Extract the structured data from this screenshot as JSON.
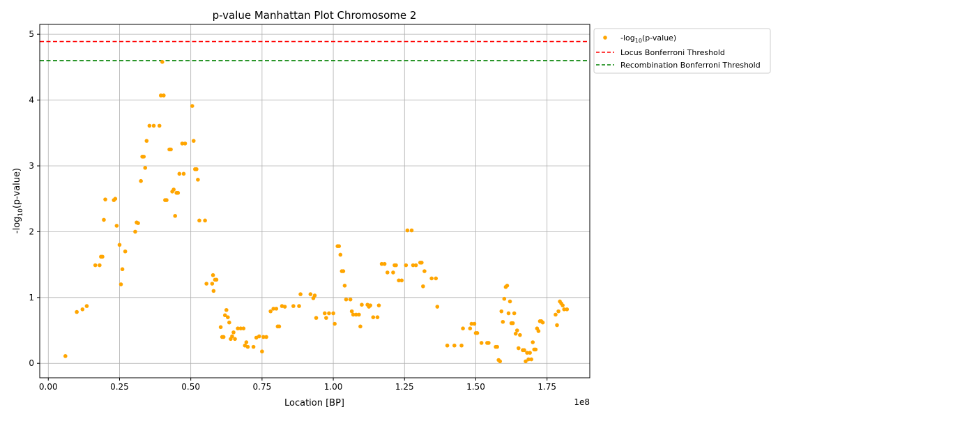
{
  "chart_data": {
    "type": "scatter",
    "title": "p-value Manhattan Plot Chromosome 2",
    "xlabel": "Location [BP]",
    "ylabel_parts": [
      "-log",
      "10",
      "(p-value)"
    ],
    "x_offset_label": "1e8",
    "xlim": [
      -0.03,
      1.9
    ],
    "ylim": [
      -0.22,
      5.15
    ],
    "x_ticks": [
      0.0,
      0.25,
      0.5,
      0.75,
      1.0,
      1.25,
      1.5,
      1.75
    ],
    "x_tick_labels": [
      "0.00",
      "0.25",
      "0.50",
      "0.75",
      "1.00",
      "1.25",
      "1.50",
      "1.75"
    ],
    "y_ticks": [
      0,
      1,
      2,
      3,
      4,
      5
    ],
    "y_tick_labels": [
      "0",
      "1",
      "2",
      "3",
      "4",
      "5"
    ],
    "grid": true,
    "legend_position": "outside-right-top",
    "series": [
      {
        "name_parts": [
          "-log",
          "10",
          "(p-value)"
        ],
        "kind": "scatter",
        "color": "#FFA500",
        "points": [
          [
            0.06,
            0.11
          ],
          [
            0.1,
            0.78
          ],
          [
            0.12,
            0.82
          ],
          [
            0.135,
            0.87
          ],
          [
            0.165,
            1.49
          ],
          [
            0.18,
            1.49
          ],
          [
            0.185,
            1.62
          ],
          [
            0.19,
            1.62
          ],
          [
            0.195,
            2.18
          ],
          [
            0.2,
            2.49
          ],
          [
            0.23,
            2.48
          ],
          [
            0.235,
            2.5
          ],
          [
            0.24,
            2.09
          ],
          [
            0.25,
            1.8
          ],
          [
            0.255,
            1.2
          ],
          [
            0.26,
            1.43
          ],
          [
            0.27,
            1.7
          ],
          [
            0.305,
            2.0
          ],
          [
            0.31,
            2.14
          ],
          [
            0.315,
            2.13
          ],
          [
            0.325,
            2.77
          ],
          [
            0.33,
            3.14
          ],
          [
            0.335,
            3.14
          ],
          [
            0.34,
            2.97
          ],
          [
            0.345,
            3.38
          ],
          [
            0.355,
            3.61
          ],
          [
            0.37,
            3.61
          ],
          [
            0.39,
            3.61
          ],
          [
            0.395,
            4.07
          ],
          [
            0.4,
            4.58
          ],
          [
            0.405,
            4.07
          ],
          [
            0.41,
            2.48
          ],
          [
            0.415,
            2.48
          ],
          [
            0.425,
            3.25
          ],
          [
            0.43,
            3.25
          ],
          [
            0.435,
            2.61
          ],
          [
            0.44,
            2.64
          ],
          [
            0.445,
            2.24
          ],
          [
            0.45,
            2.59
          ],
          [
            0.455,
            2.59
          ],
          [
            0.46,
            2.88
          ],
          [
            0.47,
            3.34
          ],
          [
            0.475,
            2.88
          ],
          [
            0.48,
            3.34
          ],
          [
            0.505,
            3.91
          ],
          [
            0.51,
            3.38
          ],
          [
            0.515,
            2.95
          ],
          [
            0.52,
            2.95
          ],
          [
            0.525,
            2.79
          ],
          [
            0.53,
            2.17
          ],
          [
            0.55,
            2.17
          ],
          [
            0.555,
            1.21
          ],
          [
            0.575,
            1.21
          ],
          [
            0.578,
            1.34
          ],
          [
            0.58,
            1.1
          ],
          [
            0.585,
            1.27
          ],
          [
            0.59,
            1.27
          ],
          [
            0.605,
            0.55
          ],
          [
            0.61,
            0.4
          ],
          [
            0.615,
            0.4
          ],
          [
            0.62,
            0.73
          ],
          [
            0.625,
            0.81
          ],
          [
            0.63,
            0.7
          ],
          [
            0.635,
            0.62
          ],
          [
            0.64,
            0.37
          ],
          [
            0.645,
            0.41
          ],
          [
            0.65,
            0.47
          ],
          [
            0.655,
            0.37
          ],
          [
            0.665,
            0.53
          ],
          [
            0.675,
            0.53
          ],
          [
            0.685,
            0.53
          ],
          [
            0.69,
            0.27
          ],
          [
            0.695,
            0.32
          ],
          [
            0.7,
            0.25
          ],
          [
            0.72,
            0.25
          ],
          [
            0.73,
            0.39
          ],
          [
            0.74,
            0.41
          ],
          [
            0.75,
            0.18
          ],
          [
            0.755,
            0.4
          ],
          [
            0.765,
            0.4
          ],
          [
            0.78,
            0.79
          ],
          [
            0.79,
            0.83
          ],
          [
            0.8,
            0.83
          ],
          [
            0.805,
            0.56
          ],
          [
            0.81,
            0.56
          ],
          [
            0.82,
            0.87
          ],
          [
            0.83,
            0.86
          ],
          [
            0.86,
            0.87
          ],
          [
            0.88,
            0.87
          ],
          [
            0.885,
            1.05
          ],
          [
            0.92,
            1.05
          ],
          [
            0.93,
            0.99
          ],
          [
            0.935,
            1.03
          ],
          [
            0.94,
            0.69
          ],
          [
            0.97,
            0.76
          ],
          [
            0.975,
            0.69
          ],
          [
            0.985,
            0.76
          ],
          [
            1.0,
            0.76
          ],
          [
            1.005,
            0.6
          ],
          [
            1.015,
            1.78
          ],
          [
            1.02,
            1.78
          ],
          [
            1.025,
            1.65
          ],
          [
            1.03,
            1.4
          ],
          [
            1.035,
            1.4
          ],
          [
            1.04,
            1.18
          ],
          [
            1.045,
            0.97
          ],
          [
            1.06,
            0.97
          ],
          [
            1.065,
            0.79
          ],
          [
            1.07,
            0.74
          ],
          [
            1.08,
            0.74
          ],
          [
            1.09,
            0.74
          ],
          [
            1.095,
            0.56
          ],
          [
            1.1,
            0.89
          ],
          [
            1.12,
            0.89
          ],
          [
            1.125,
            0.86
          ],
          [
            1.13,
            0.88
          ],
          [
            1.14,
            0.7
          ],
          [
            1.155,
            0.7
          ],
          [
            1.16,
            0.88
          ],
          [
            1.17,
            1.51
          ],
          [
            1.18,
            1.51
          ],
          [
            1.19,
            1.38
          ],
          [
            1.21,
            1.38
          ],
          [
            1.215,
            1.49
          ],
          [
            1.22,
            1.49
          ],
          [
            1.23,
            1.26
          ],
          [
            1.24,
            1.26
          ],
          [
            1.255,
            1.49
          ],
          [
            1.26,
            2.02
          ],
          [
            1.275,
            2.02
          ],
          [
            1.28,
            1.49
          ],
          [
            1.29,
            1.49
          ],
          [
            1.305,
            1.53
          ],
          [
            1.31,
            1.53
          ],
          [
            1.315,
            1.17
          ],
          [
            1.32,
            1.4
          ],
          [
            1.345,
            1.29
          ],
          [
            1.36,
            1.29
          ],
          [
            1.365,
            0.86
          ],
          [
            1.4,
            0.27
          ],
          [
            1.425,
            0.27
          ],
          [
            1.45,
            0.27
          ],
          [
            1.455,
            0.53
          ],
          [
            1.48,
            0.53
          ],
          [
            1.485,
            0.6
          ],
          [
            1.495,
            0.6
          ],
          [
            1.5,
            0.46
          ],
          [
            1.505,
            0.46
          ],
          [
            1.52,
            0.31
          ],
          [
            1.54,
            0.31
          ],
          [
            1.545,
            0.31
          ],
          [
            1.57,
            0.25
          ],
          [
            1.575,
            0.25
          ],
          [
            1.58,
            0.05
          ],
          [
            1.585,
            0.03
          ],
          [
            1.59,
            0.79
          ],
          [
            1.595,
            0.63
          ],
          [
            1.6,
            0.98
          ],
          [
            1.605,
            1.16
          ],
          [
            1.61,
            1.18
          ],
          [
            1.615,
            0.76
          ],
          [
            1.62,
            0.94
          ],
          [
            1.625,
            0.61
          ],
          [
            1.63,
            0.61
          ],
          [
            1.635,
            0.76
          ],
          [
            1.64,
            0.45
          ],
          [
            1.645,
            0.5
          ],
          [
            1.65,
            0.23
          ],
          [
            1.655,
            0.43
          ],
          [
            1.665,
            0.2
          ],
          [
            1.67,
            0.2
          ],
          [
            1.675,
            0.03
          ],
          [
            1.68,
            0.16
          ],
          [
            1.685,
            0.06
          ],
          [
            1.69,
            0.16
          ],
          [
            1.695,
            0.06
          ],
          [
            1.7,
            0.32
          ],
          [
            1.705,
            0.21
          ],
          [
            1.71,
            0.21
          ],
          [
            1.715,
            0.53
          ],
          [
            1.72,
            0.49
          ],
          [
            1.725,
            0.64
          ],
          [
            1.73,
            0.64
          ],
          [
            1.735,
            0.62
          ],
          [
            1.78,
            0.74
          ],
          [
            1.785,
            0.58
          ],
          [
            1.79,
            0.79
          ],
          [
            1.795,
            0.94
          ],
          [
            1.8,
            0.91
          ],
          [
            1.805,
            0.88
          ],
          [
            1.81,
            0.82
          ],
          [
            1.82,
            0.82
          ]
        ]
      },
      {
        "name": "Locus Bonferroni Threshold",
        "kind": "hline",
        "y": 4.89,
        "color": "#FF0000",
        "dash": true
      },
      {
        "name": "Recombination Bonferroni Threshold",
        "kind": "hline",
        "y": 4.6,
        "color": "#008000",
        "dash": true
      }
    ]
  }
}
